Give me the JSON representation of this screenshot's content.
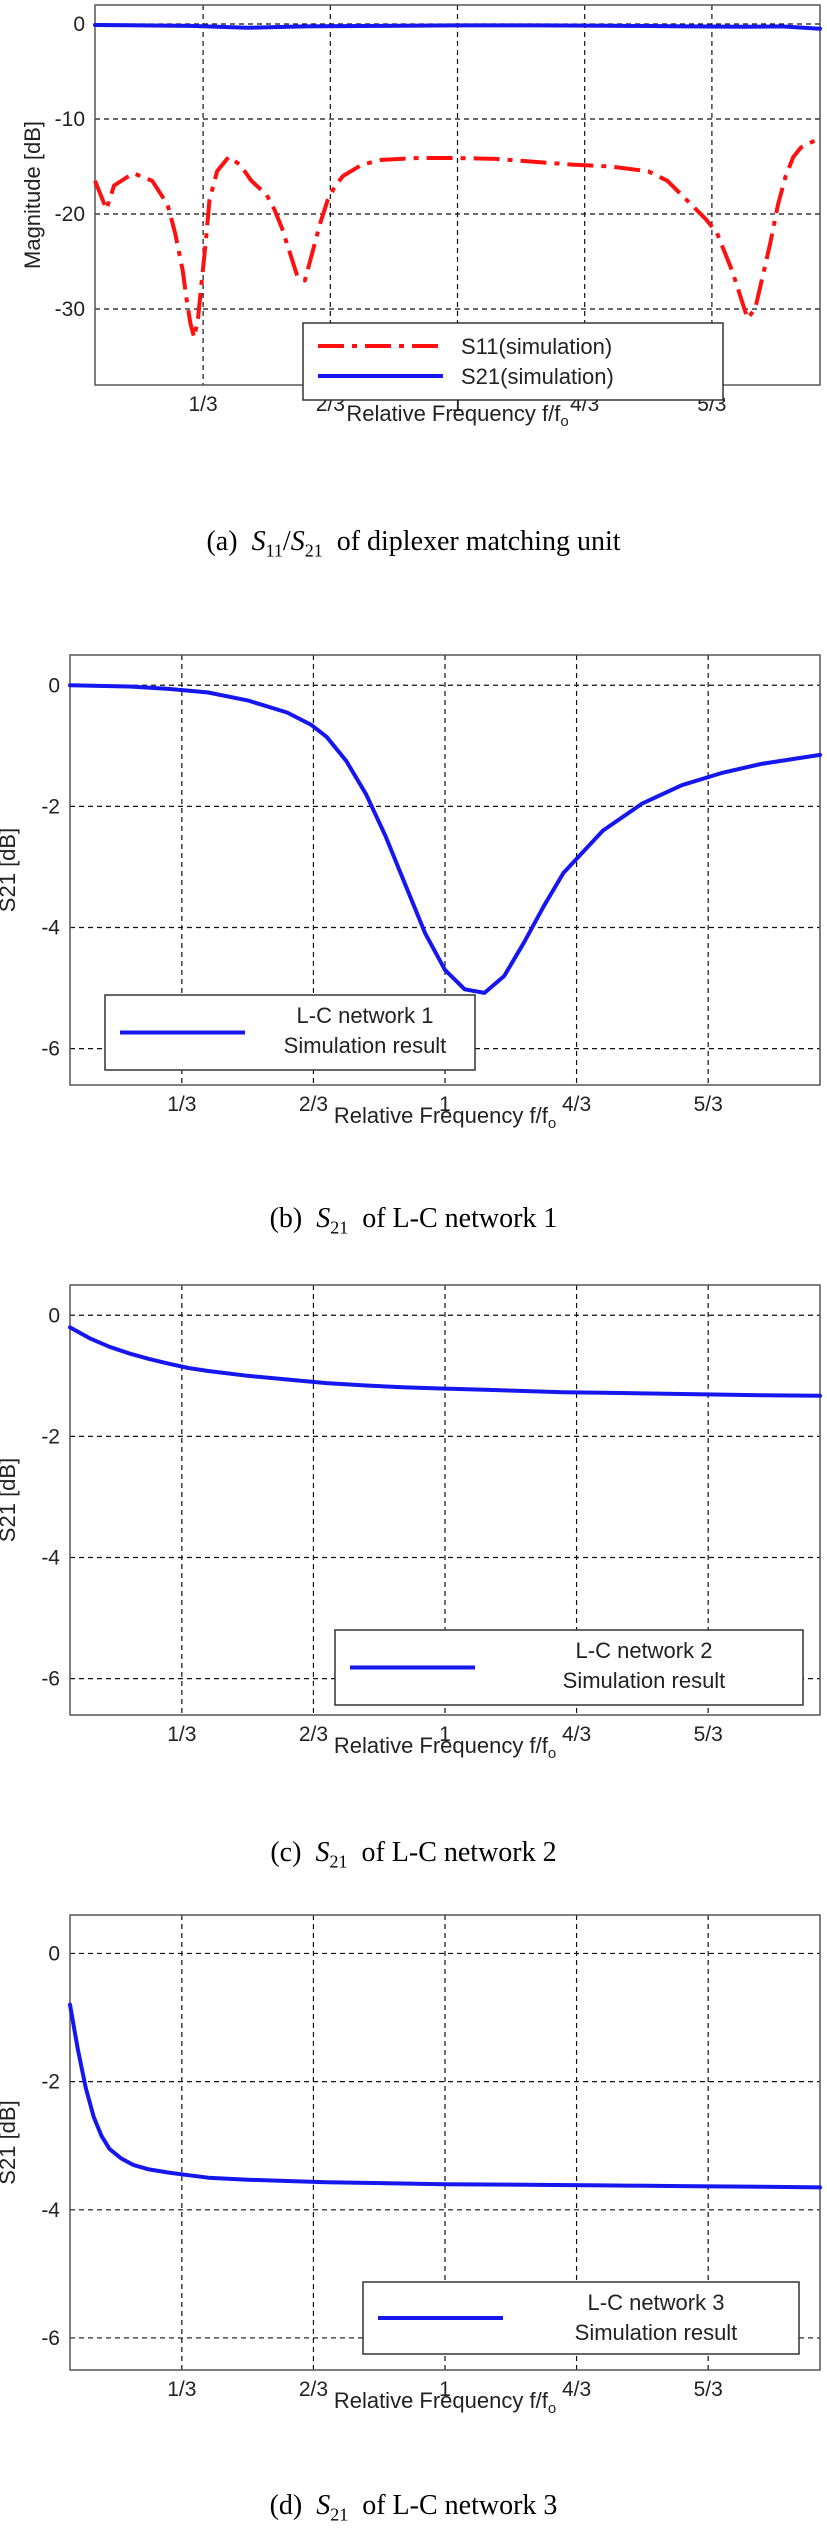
{
  "colors": {
    "s11": "#ff1010",
    "s21": "#1616ee",
    "grid": "#111111",
    "frame": "#555555"
  },
  "xtick_labels": [
    "1/3",
    "2/3",
    "1",
    "4/3",
    "5/3"
  ],
  "xlabel_prefix": "Relative Frequency f/f",
  "xlabel_sub": "o",
  "charts": [
    {
      "type": "line",
      "ylabel": "Magnitude [dB]",
      "xlim": [
        0.05,
        1.95
      ],
      "ylim": [
        -38,
        2
      ],
      "yticks": [
        0,
        -10,
        -20,
        -30
      ],
      "xticks": [
        0.3333,
        0.6667,
        1.0,
        1.3333,
        1.6667
      ],
      "legend": {
        "position": "bottom-right",
        "entries": [
          "S11(simulation)",
          "S21(simulation)"
        ]
      },
      "series": [
        {
          "name": "S11(simulation)",
          "style": "dashdot",
          "color": "#ff1010",
          "x": [
            0.05,
            0.08,
            0.1,
            0.15,
            0.2,
            0.24,
            0.26,
            0.28,
            0.29,
            0.3,
            0.31,
            0.32,
            0.33,
            0.34,
            0.35,
            0.37,
            0.4,
            0.43,
            0.46,
            0.5,
            0.52,
            0.54,
            0.56,
            0.58,
            0.6,
            0.62,
            0.64,
            0.66,
            0.68,
            0.7,
            0.75,
            0.8,
            0.9,
            1.0,
            1.1,
            1.2,
            1.3,
            1.4,
            1.5,
            1.55,
            1.6,
            1.65,
            1.68,
            1.7,
            1.72,
            1.74,
            1.76,
            1.78,
            1.8,
            1.82,
            1.84,
            1.86,
            1.88,
            1.9,
            1.95
          ],
          "y": [
            -16.5,
            -19.5,
            -17,
            -15.7,
            -16.5,
            -19,
            -22,
            -26,
            -29,
            -31.5,
            -33,
            -31,
            -27,
            -23,
            -18.5,
            -15.5,
            -14,
            -14.8,
            -16.5,
            -18,
            -19.5,
            -21.5,
            -24,
            -26.5,
            -27,
            -24,
            -21,
            -18.5,
            -17,
            -16,
            -14.8,
            -14.3,
            -14.1,
            -14.1,
            -14.2,
            -14.5,
            -14.8,
            -15,
            -15.5,
            -16.5,
            -18.5,
            -20.5,
            -22,
            -24,
            -26,
            -28.5,
            -31,
            -30,
            -26.5,
            -23,
            -19,
            -16,
            -14,
            -13,
            -12
          ]
        },
        {
          "name": "S21(simulation)",
          "style": "solid",
          "color": "#1616ee",
          "x": [
            0.05,
            0.3,
            0.45,
            0.6,
            0.8,
            1.0,
            1.2,
            1.4,
            1.6,
            1.75,
            1.85,
            1.95
          ],
          "y": [
            -0.1,
            -0.2,
            -0.4,
            -0.25,
            -0.2,
            -0.15,
            -0.15,
            -0.18,
            -0.25,
            -0.3,
            -0.25,
            -0.5
          ]
        }
      ]
    },
    {
      "type": "line",
      "ylabel": "S21 [dB]",
      "xlim": [
        0.05,
        1.95
      ],
      "ylim": [
        -6.6,
        0.5
      ],
      "yticks": [
        0,
        -2,
        -4,
        -6
      ],
      "xticks": [
        0.3333,
        0.6667,
        1.0,
        1.3333,
        1.6667
      ],
      "legend": {
        "position": "bottom-left",
        "entries": [
          "L-C network 1",
          "Simulation result"
        ]
      },
      "series": [
        {
          "name": "L-C network 1",
          "style": "solid",
          "color": "#1616ee",
          "x": [
            0.05,
            0.2,
            0.3,
            0.4,
            0.5,
            0.6,
            0.66,
            0.7,
            0.75,
            0.8,
            0.85,
            0.9,
            0.95,
            1.0,
            1.05,
            1.1,
            1.15,
            1.2,
            1.25,
            1.3,
            1.35,
            1.4,
            1.5,
            1.6,
            1.7,
            1.8,
            1.95
          ],
          "y": [
            0,
            -0.02,
            -0.06,
            -0.12,
            -0.25,
            -0.45,
            -0.65,
            -0.85,
            -1.25,
            -1.8,
            -2.5,
            -3.3,
            -4.1,
            -4.7,
            -5.02,
            -5.08,
            -4.8,
            -4.25,
            -3.65,
            -3.1,
            -2.75,
            -2.4,
            -1.95,
            -1.65,
            -1.45,
            -1.3,
            -1.15
          ]
        }
      ]
    },
    {
      "type": "line",
      "ylabel": "S21 [dB]",
      "xlim": [
        0.05,
        1.95
      ],
      "ylim": [
        -6.6,
        0.5
      ],
      "yticks": [
        0,
        -2,
        -4,
        -6
      ],
      "xticks": [
        0.3333,
        0.6667,
        1.0,
        1.3333,
        1.6667
      ],
      "legend": {
        "position": "bottom-right",
        "entries": [
          "L-C network 2",
          "Simulation result"
        ]
      },
      "series": [
        {
          "name": "L-C network 2",
          "style": "solid",
          "color": "#1616ee",
          "x": [
            0.05,
            0.1,
            0.15,
            0.2,
            0.25,
            0.3,
            0.35,
            0.4,
            0.5,
            0.6,
            0.7,
            0.8,
            0.9,
            1.0,
            1.1,
            1.2,
            1.3,
            1.4,
            1.5,
            1.6,
            1.7,
            1.8,
            1.95
          ],
          "y": [
            -0.2,
            -0.38,
            -0.52,
            -0.63,
            -0.72,
            -0.8,
            -0.87,
            -0.92,
            -1.0,
            -1.06,
            -1.12,
            -1.16,
            -1.19,
            -1.21,
            -1.23,
            -1.25,
            -1.27,
            -1.28,
            -1.29,
            -1.3,
            -1.31,
            -1.32,
            -1.33
          ]
        }
      ]
    },
    {
      "type": "line",
      "ylabel": "S21 [dB]",
      "xlim": [
        0.05,
        1.95
      ],
      "ylim": [
        -6.5,
        0.6
      ],
      "yticks": [
        0,
        -2,
        -4,
        -6
      ],
      "xticks": [
        0.3333,
        0.6667,
        1.0,
        1.3333,
        1.6667
      ],
      "legend": {
        "position": "bottom-right",
        "entries": [
          "L-C network 3",
          "Simulation result"
        ]
      },
      "series": [
        {
          "name": "L-C network 3",
          "style": "solid",
          "color": "#1616ee",
          "x": [
            0.05,
            0.07,
            0.09,
            0.11,
            0.13,
            0.15,
            0.18,
            0.21,
            0.25,
            0.3,
            0.35,
            0.4,
            0.5,
            0.6,
            0.7,
            0.8,
            1.0,
            1.2,
            1.4,
            1.6,
            1.8,
            1.95
          ],
          "y": [
            -0.8,
            -1.5,
            -2.1,
            -2.55,
            -2.85,
            -3.05,
            -3.2,
            -3.3,
            -3.37,
            -3.42,
            -3.46,
            -3.5,
            -3.53,
            -3.55,
            -3.57,
            -3.58,
            -3.6,
            -3.61,
            -3.62,
            -3.63,
            -3.64,
            -3.65
          ]
        }
      ]
    }
  ],
  "captions": [
    {
      "letter": "(a)",
      "s_a": "S",
      "s_a_sub": "11",
      "slash": "/",
      "s_b": "S",
      "s_b_sub": "21",
      "tail": "of  diplexer  matching  unit"
    },
    {
      "letter": "(b)",
      "s": "S",
      "s_sub": "21",
      "tail": "of  L-C  network  1"
    },
    {
      "letter": "(c)",
      "s": "S",
      "s_sub": "21",
      "tail": "of  L-C  network  2"
    },
    {
      "letter": "(d)",
      "s": "S",
      "s_sub": "21",
      "tail": "of  L-C  network  3"
    }
  ]
}
